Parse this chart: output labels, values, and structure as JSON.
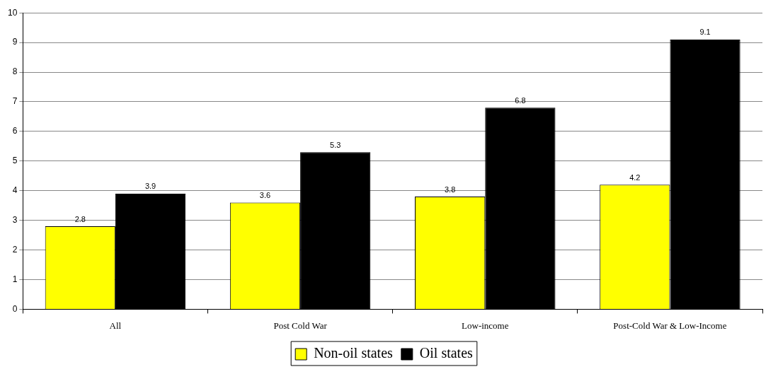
{
  "chart_data": {
    "type": "bar",
    "categories": [
      "All",
      "Post Cold War",
      "Low-income",
      "Post-Cold War & Low-Income"
    ],
    "series": [
      {
        "name": "Non-oil states",
        "color": "#ffff00",
        "values": [
          2.8,
          3.6,
          3.8,
          4.2
        ]
      },
      {
        "name": "Oil states",
        "color": "#000000",
        "values": [
          3.9,
          5.3,
          6.8,
          9.1
        ]
      }
    ],
    "ylim": [
      0,
      10
    ],
    "yticks": [
      0,
      1,
      2,
      3,
      4,
      5,
      6,
      7,
      8,
      9,
      10
    ],
    "grid": "y",
    "legend": "bottom",
    "data_labels": true
  }
}
